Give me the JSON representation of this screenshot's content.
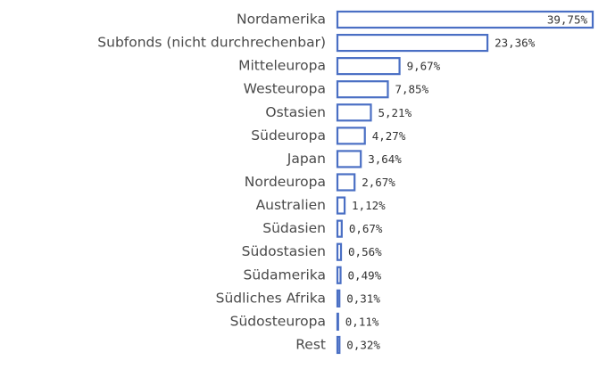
{
  "chart_data": {
    "type": "bar",
    "orientation": "horizontal",
    "color": "#4a6fc4",
    "categories": [
      "Nordamerika",
      "Subfonds (nicht durchrechenbar)",
      "Mitteleuropa",
      "Westeuropa",
      "Ostasien",
      "Südeuropa",
      "Japan",
      "Nordeuropa",
      "Australien",
      "Südasien",
      "Südostasien",
      "Südamerika",
      "Südliches Afrika",
      "Südosteuropa",
      "Rest"
    ],
    "values": [
      39.75,
      23.36,
      9.67,
      7.85,
      5.21,
      4.27,
      3.64,
      2.67,
      1.12,
      0.67,
      0.56,
      0.49,
      0.31,
      0.11,
      0.32
    ],
    "value_labels": [
      "39,75%",
      "23,36%",
      "9,67%",
      "7,85%",
      "5,21%",
      "4,27%",
      "3,64%",
      "2,67%",
      "1,12%",
      "0,67%",
      "0,56%",
      "0,49%",
      "0,31%",
      "0,11%",
      "0,32%"
    ]
  }
}
